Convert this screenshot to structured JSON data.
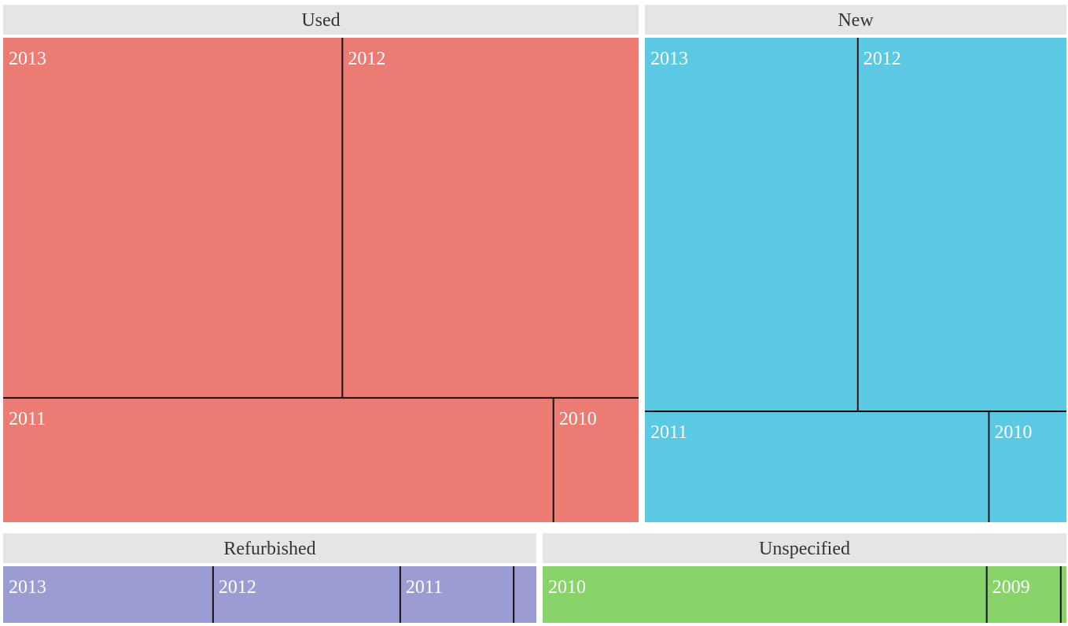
{
  "chart_data": {
    "type": "treemap",
    "colors": {
      "Used": "#ec7b74",
      "New": "#5bc9e3",
      "Refurbished": "#9a9cd2",
      "Unspecified": "#89d46a",
      "header_bg": "#e5e5e5",
      "divider": "#111111"
    },
    "groups": [
      {
        "name": "Used",
        "cells": [
          {
            "label": "2013",
            "value": 30.0
          },
          {
            "label": "2012",
            "value": 26.2
          },
          {
            "label": "2011",
            "value": 16.8
          },
          {
            "label": "2010",
            "value": 2.6
          }
        ]
      },
      {
        "name": "New",
        "cells": [
          {
            "label": "2013",
            "value": 14.8
          },
          {
            "label": "2012",
            "value": 14.5
          },
          {
            "label": "2011",
            "value": 7.1
          },
          {
            "label": "2010",
            "value": 1.6
          }
        ]
      },
      {
        "name": "Refurbished",
        "cells": [
          {
            "label": "2013",
            "value": 3.7
          },
          {
            "label": "2012",
            "value": 3.3
          },
          {
            "label": "2011",
            "value": 2.0
          },
          {
            "label": "",
            "value": 0.4
          }
        ]
      },
      {
        "name": "Unspecified",
        "cells": [
          {
            "label": "2010",
            "value": 7.8
          },
          {
            "label": "2009",
            "value": 1.3
          },
          {
            "label": "",
            "value": 0.1
          }
        ]
      }
    ]
  }
}
